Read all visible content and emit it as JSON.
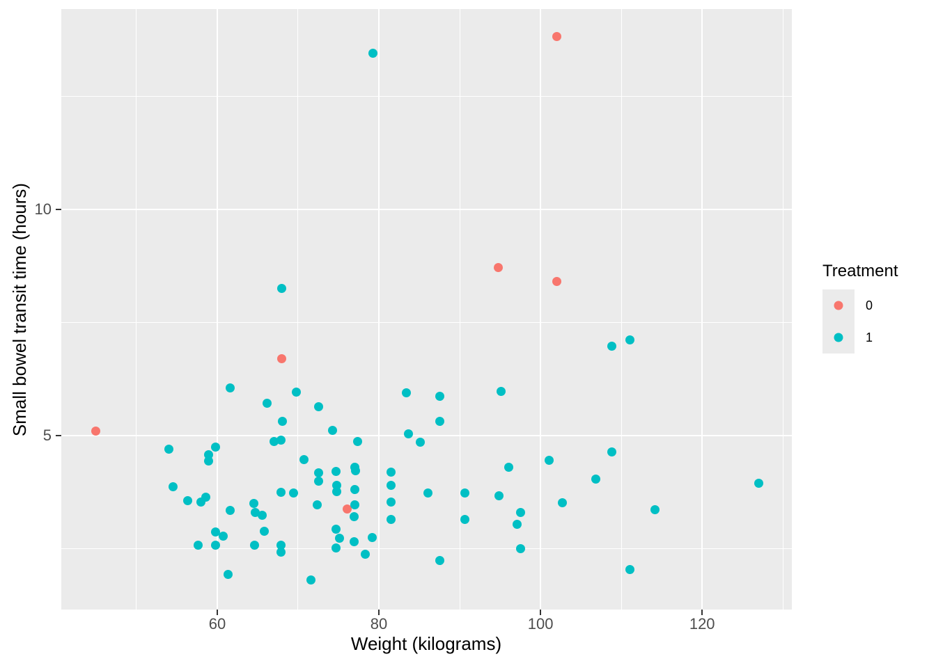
{
  "chart_data": {
    "type": "scatter",
    "title": "",
    "xlabel": "Weight (kilograms)",
    "ylabel": "Small bowel transit time (hours)",
    "xlim": [
      40.7,
      131.1
    ],
    "ylim": [
      1.15,
      14.43
    ],
    "x_major_ticks": {
      "values": [
        60,
        80,
        100,
        120
      ],
      "labels": [
        "60",
        "80",
        "100",
        "120"
      ]
    },
    "x_minor_ticks": [
      50,
      70,
      90,
      110,
      130
    ],
    "y_major_ticks": {
      "values": [
        5,
        10
      ],
      "labels": [
        "5",
        "10"
      ]
    },
    "y_minor_ticks": [
      2.5,
      7.5,
      12.5
    ],
    "grid": "on",
    "panel_background": "#EBEBEB",
    "gridline_color": "#FFFFFF",
    "tick_label_color": "#4D4D4D",
    "legend": {
      "title": "Treatment",
      "position": "right",
      "entries": [
        {
          "label": "0",
          "color": "#F8766D"
        },
        {
          "label": "1",
          "color": "#00BFC4"
        }
      ]
    },
    "series": [
      {
        "name": "0",
        "color": "#F8766D",
        "points": [
          [
            45.0,
            5.1
          ],
          [
            102.0,
            13.82
          ],
          [
            94.8,
            8.71
          ],
          [
            102.0,
            8.4
          ],
          [
            68.0,
            6.69
          ],
          [
            76.1,
            3.38
          ]
        ]
      },
      {
        "name": "1",
        "color": "#00BFC4",
        "points": [
          [
            79.3,
            13.46
          ],
          [
            68.0,
            8.25
          ],
          [
            111.1,
            7.11
          ],
          [
            108.8,
            6.97
          ],
          [
            61.6,
            6.05
          ],
          [
            95.1,
            5.98
          ],
          [
            69.8,
            5.96
          ],
          [
            83.4,
            5.94
          ],
          [
            87.5,
            5.87
          ],
          [
            66.2,
            5.71
          ],
          [
            72.5,
            5.63
          ],
          [
            87.5,
            5.32
          ],
          [
            68.1,
            5.31
          ],
          [
            74.3,
            5.11
          ],
          [
            83.7,
            5.03
          ],
          [
            67.9,
            4.89
          ],
          [
            67.0,
            4.86
          ],
          [
            77.4,
            4.86
          ],
          [
            85.1,
            4.85
          ],
          [
            59.8,
            4.75
          ],
          [
            54.0,
            4.69
          ],
          [
            108.8,
            4.63
          ],
          [
            58.9,
            4.58
          ],
          [
            70.7,
            4.46
          ],
          [
            101.1,
            4.45
          ],
          [
            58.9,
            4.44
          ],
          [
            77.0,
            4.29
          ],
          [
            96.1,
            4.29
          ],
          [
            77.1,
            4.22
          ],
          [
            74.7,
            4.2
          ],
          [
            81.5,
            4.19
          ],
          [
            72.5,
            4.17
          ],
          [
            106.8,
            4.03
          ],
          [
            72.5,
            3.99
          ],
          [
            127.0,
            3.94
          ],
          [
            74.8,
            3.9
          ],
          [
            81.5,
            3.9
          ],
          [
            54.5,
            3.87
          ],
          [
            77.0,
            3.81
          ],
          [
            74.8,
            3.76
          ],
          [
            67.9,
            3.75
          ],
          [
            69.4,
            3.73
          ],
          [
            86.1,
            3.72
          ],
          [
            90.6,
            3.72
          ],
          [
            94.9,
            3.66
          ],
          [
            58.6,
            3.63
          ],
          [
            56.3,
            3.56
          ],
          [
            58.0,
            3.53
          ],
          [
            81.5,
            3.52
          ],
          [
            102.7,
            3.51
          ],
          [
            64.5,
            3.49
          ],
          [
            72.4,
            3.46
          ],
          [
            77.0,
            3.46
          ],
          [
            114.2,
            3.36
          ],
          [
            61.6,
            3.35
          ],
          [
            97.5,
            3.3
          ],
          [
            64.7,
            3.29
          ],
          [
            65.6,
            3.23
          ],
          [
            76.9,
            3.2
          ],
          [
            81.5,
            3.15
          ],
          [
            90.6,
            3.15
          ],
          [
            97.1,
            3.04
          ],
          [
            74.7,
            2.92
          ],
          [
            65.8,
            2.88
          ],
          [
            59.8,
            2.87
          ],
          [
            60.7,
            2.78
          ],
          [
            79.2,
            2.74
          ],
          [
            75.1,
            2.72
          ],
          [
            76.9,
            2.65
          ],
          [
            59.8,
            2.58
          ],
          [
            57.6,
            2.57
          ],
          [
            64.6,
            2.57
          ],
          [
            67.9,
            2.57
          ],
          [
            74.7,
            2.51
          ],
          [
            97.5,
            2.49
          ],
          [
            67.9,
            2.42
          ],
          [
            78.3,
            2.38
          ],
          [
            87.5,
            2.24
          ],
          [
            111.1,
            2.04
          ],
          [
            61.3,
            1.93
          ],
          [
            71.6,
            1.8
          ]
        ]
      }
    ]
  }
}
